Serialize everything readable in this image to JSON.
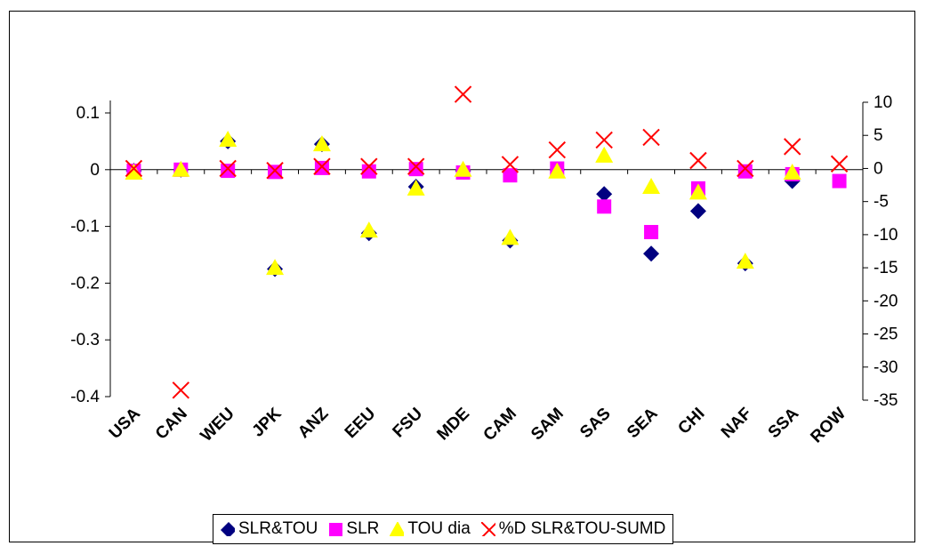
{
  "chart_data": {
    "type": "scatter",
    "categories": [
      "USA",
      "CAN",
      "WEU",
      "JPK",
      "ANZ",
      "EEU",
      "FSU",
      "MDE",
      "CAM",
      "SAM",
      "SAS",
      "SEA",
      "CHI",
      "NAF",
      "SSA",
      "ROW"
    ],
    "left_axis": {
      "ylim": [
        -0.4,
        0.1
      ],
      "ticks": [
        "0.1",
        "0",
        "-0.1",
        "-0.2",
        "-0.3",
        "-0.4"
      ]
    },
    "right_axis": {
      "ylim": [
        -35,
        10
      ],
      "ticks": [
        "10",
        "5",
        "0",
        "-5",
        "-10",
        "-15",
        "-20",
        "-25",
        "-30",
        "-35"
      ]
    },
    "grid": false,
    "legend_placement": "bottom",
    "series": [
      {
        "name": "SLR&TOU",
        "marker": "diamond",
        "color": "#000080",
        "axis": "left",
        "values": [
          -0.002,
          0.0,
          0.05,
          -0.175,
          0.045,
          -0.112,
          -0.03,
          -0.002,
          -0.125,
          0.0,
          -0.043,
          -0.148,
          -0.073,
          -0.165,
          -0.02,
          null
        ]
      },
      {
        "name": "SLR",
        "marker": "square",
        "color": "#FF00FF",
        "axis": "left",
        "values": [
          -0.002,
          0.0,
          -0.002,
          -0.004,
          0.003,
          -0.003,
          0.001,
          -0.005,
          -0.01,
          0.002,
          -0.065,
          -0.11,
          -0.033,
          -0.003,
          -0.008,
          -0.02
        ]
      },
      {
        "name": "TOU dia",
        "marker": "triangle",
        "color": "#FFFF00",
        "axis": "left",
        "values": [
          -0.005,
          0.0,
          0.053,
          -0.173,
          0.045,
          -0.107,
          -0.033,
          0.0,
          -0.12,
          -0.003,
          0.025,
          -0.03,
          -0.04,
          -0.162,
          -0.005,
          null
        ]
      },
      {
        "name": "%D SLR&TOU-SUMD",
        "marker": "x",
        "color": "#FF0000",
        "axis": "right",
        "values": [
          0.0,
          -33.5,
          0.0,
          -0.3,
          0.3,
          0.3,
          0.3,
          11.2,
          0.6,
          2.8,
          4.3,
          4.7,
          1.2,
          0.0,
          3.3,
          0.7
        ]
      }
    ]
  }
}
